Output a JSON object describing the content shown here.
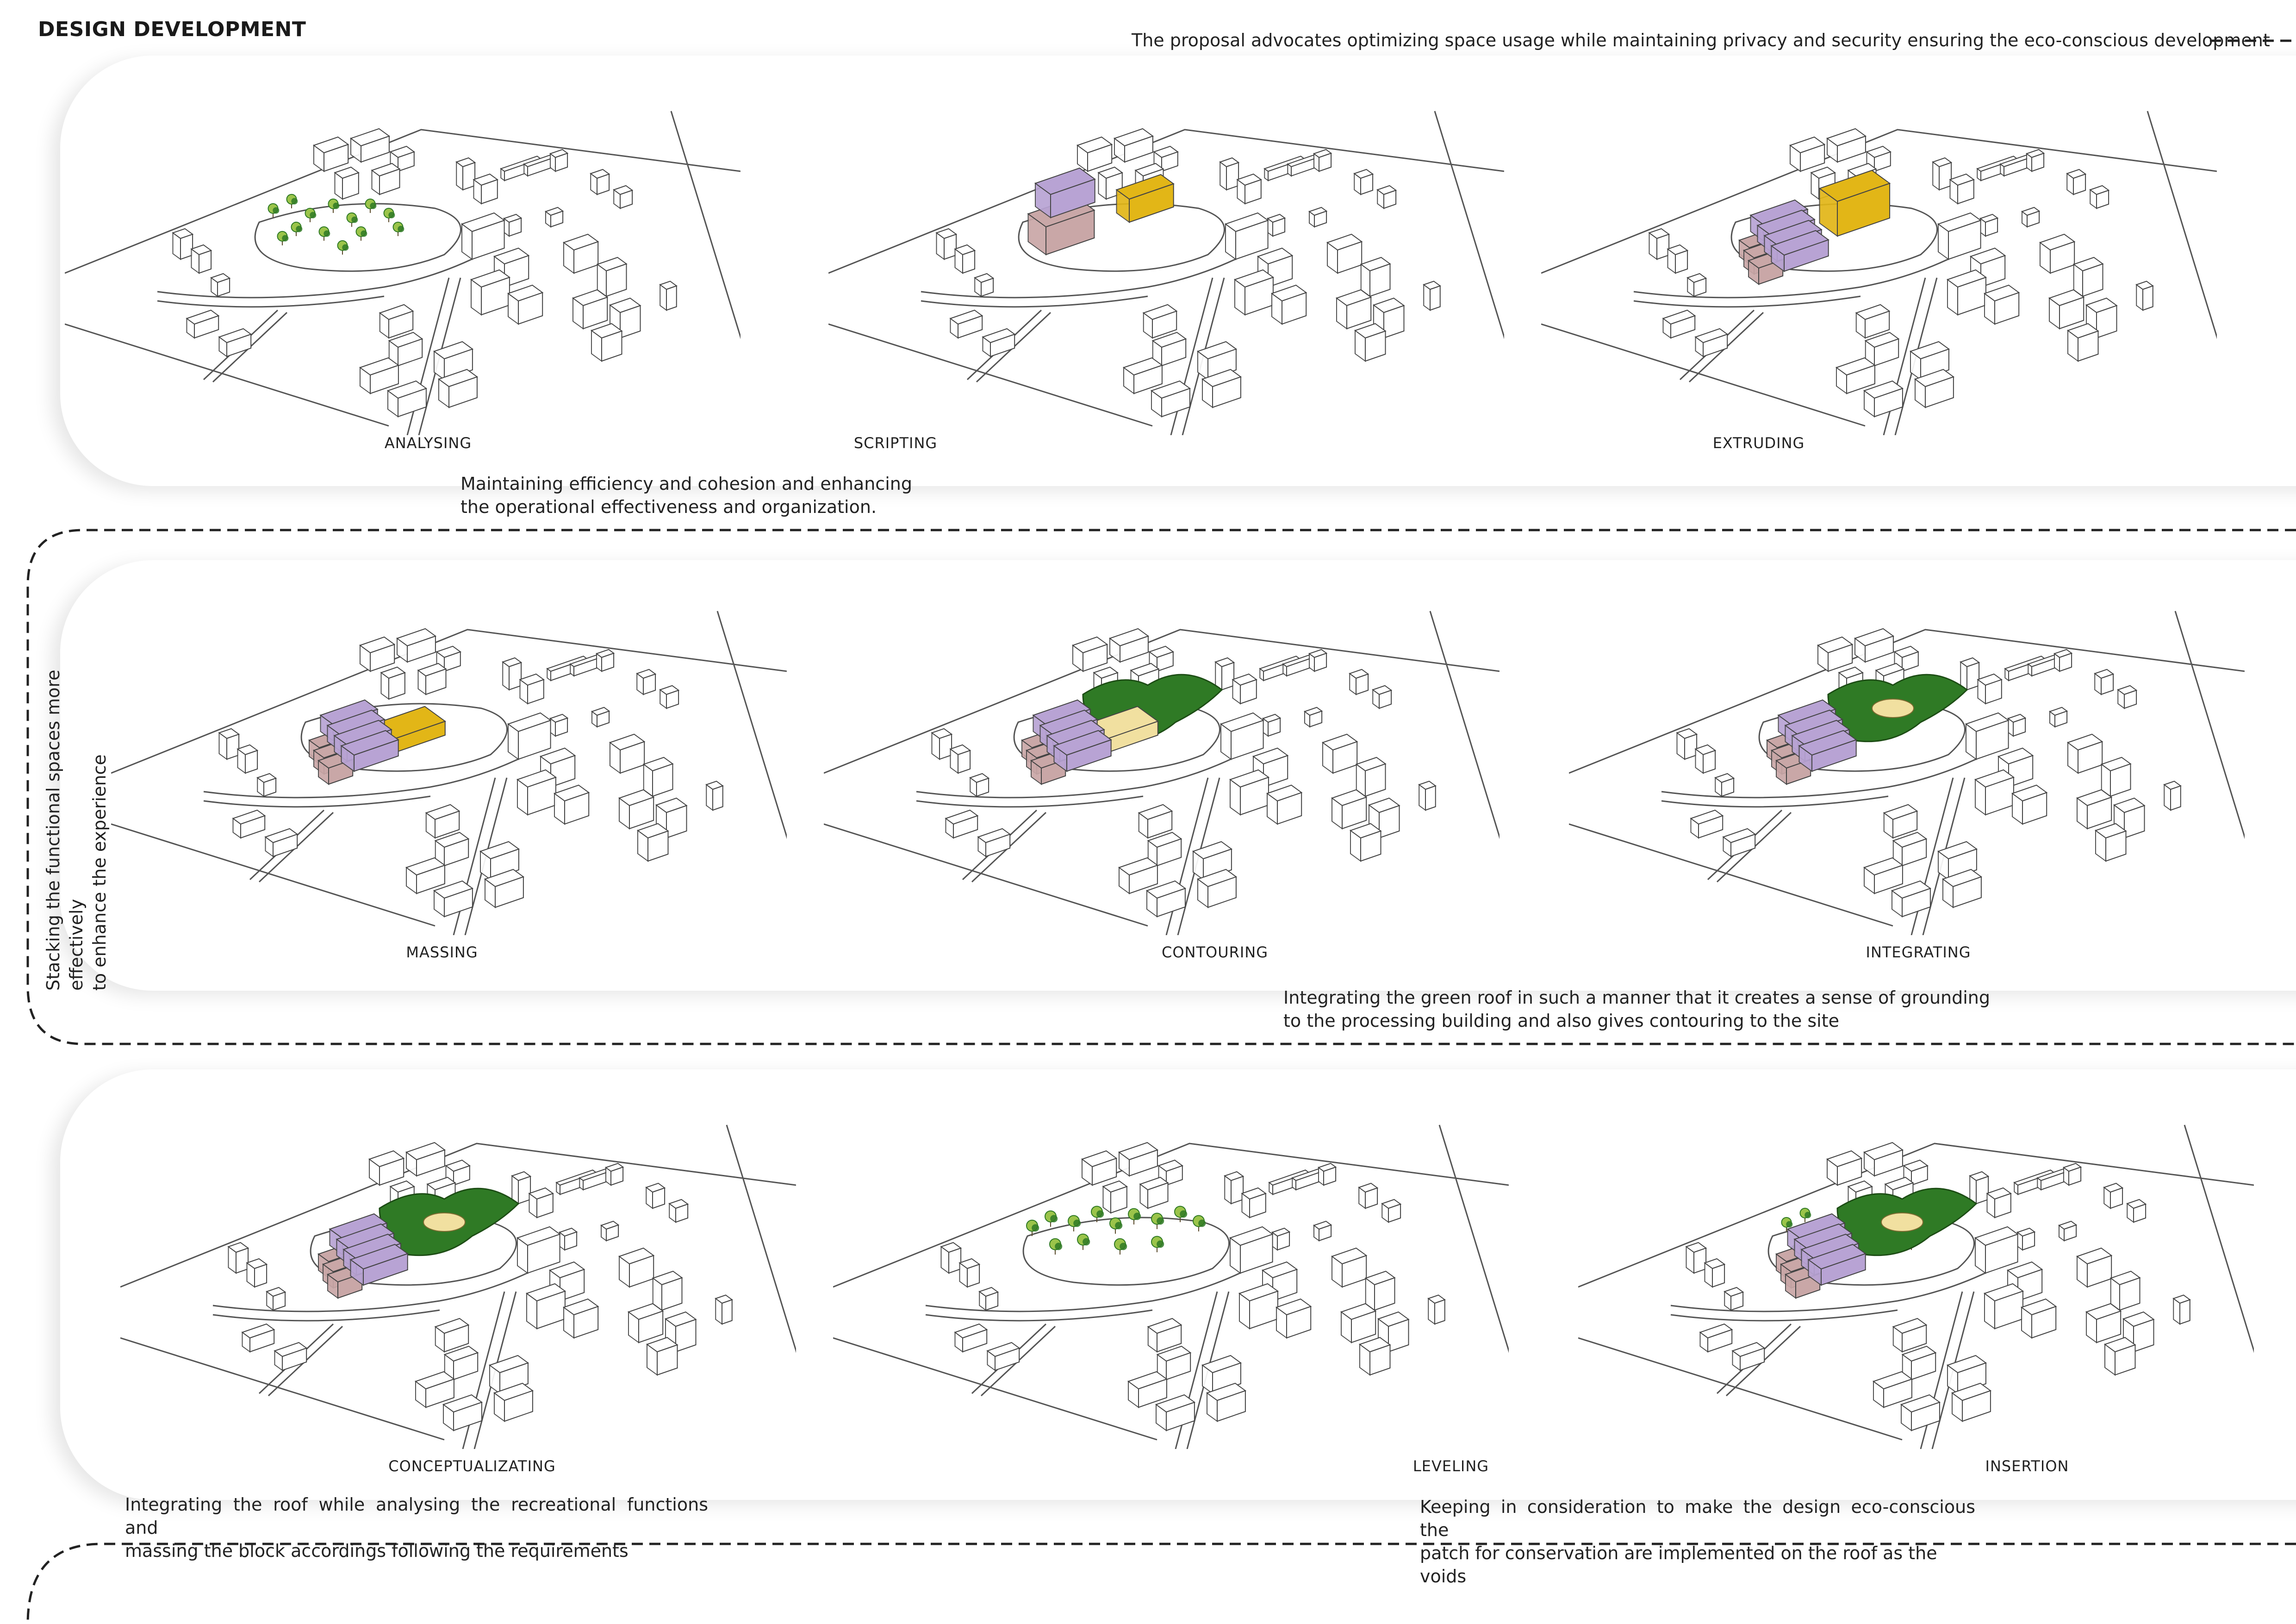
{
  "header": {
    "title": "DESIGN DEVELOPMENT",
    "top_statement": "The proposal advocates optimizing space usage while maintaining privacy and security ensuring the eco-conscious development"
  },
  "notes": {
    "row1": [
      "Maintaining efficiency and cohesion and enhancing",
      "the operational effectiveness and organization."
    ],
    "vertical": [
      "Stacking the functional spaces more effectively",
      "to enhance the experience"
    ],
    "row2": [
      "Integrating the green roof in such a manner that it creates a sense of grounding",
      "to the processing building and also gives contouring to the site"
    ],
    "row3_left": [
      "Integrating the roof while analysing the recreational functions and",
      "massing the block accordings following the requirements"
    ],
    "row3_right": [
      "Keeping in consideration to make the design eco-conscious the",
      "patch for conservation are implemented on the roof as the voids"
    ]
  },
  "steps": [
    {
      "label": "ANALYSING",
      "features": [
        "trees"
      ]
    },
    {
      "label": "SCRIPTING",
      "features": [
        "mass-purple",
        "mass-mauve",
        "mass-yellow"
      ]
    },
    {
      "label": "EXTRUDING",
      "features": [
        "stack-purple",
        "stack-mauve",
        "mass-yellow-tall"
      ]
    },
    {
      "label": "MASSING",
      "features": [
        "stack-purple",
        "stack-mauve",
        "slab-yellow"
      ]
    },
    {
      "label": "CONTOURING",
      "features": [
        "stack-purple",
        "stack-mauve",
        "slab-yellow-light",
        "green-roof"
      ]
    },
    {
      "label": "INTEGRATING",
      "features": [
        "stack-purple",
        "stack-mauve",
        "green-roof-void"
      ]
    },
    {
      "label": "CONCEPTUALIZATING",
      "features": [
        "stack-purple",
        "stack-mauve",
        "green-roof-void"
      ]
    },
    {
      "label": "LEVELING",
      "features": [
        "trees-roof"
      ]
    },
    {
      "label": "INSERTION",
      "features": [
        "stack-purple",
        "stack-mauve",
        "green-roof-void",
        "trees"
      ]
    }
  ],
  "colors": {
    "purple": "#b8a3d4",
    "mauve": "#c9a7a7",
    "yellow": "#e2b617",
    "yellow_light": "#f1e0a0",
    "green": "#2f7a25",
    "green_light": "#9bc44a",
    "line": "#555555"
  }
}
